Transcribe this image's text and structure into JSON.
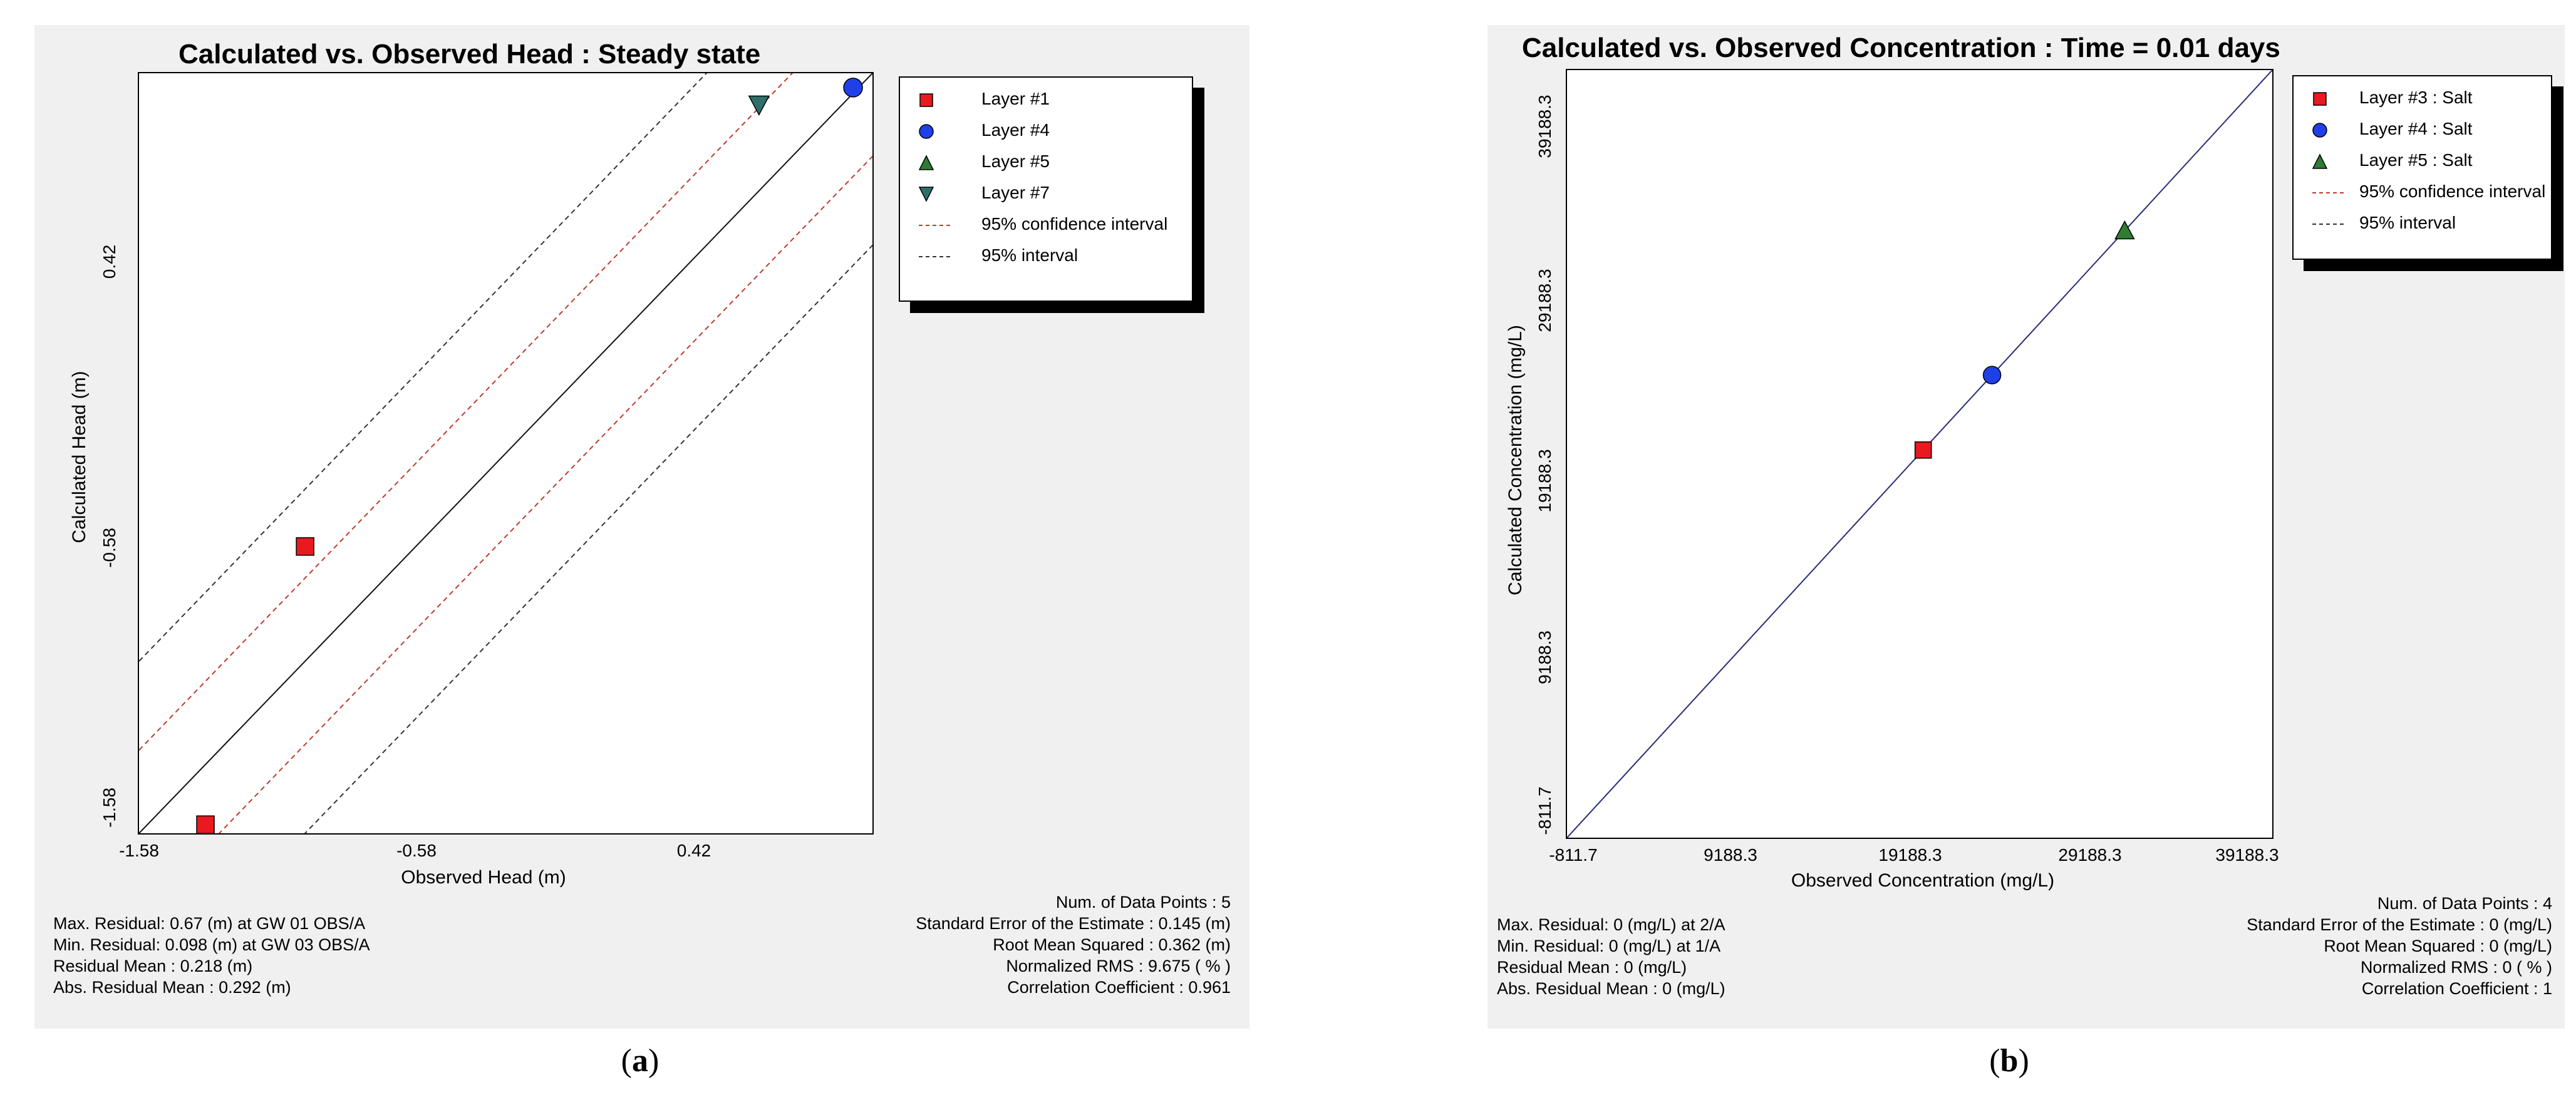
{
  "panels": [
    {
      "caption_letter": "a",
      "chart_data": {
        "type": "scatter",
        "title": "Calculated vs. Observed Head : Steady state",
        "xlabel": "Observed Head (m)",
        "ylabel": "Calculated Head (m)",
        "xlim": [
          -1.58,
          1.07
        ],
        "ylim": [
          -1.58,
          1.07
        ],
        "xticks": [
          "-1.58",
          "-0.58",
          "0.42"
        ],
        "yticks": [
          "-1.58",
          "-0.58",
          "0.42"
        ],
        "series": [
          {
            "name": "Layer #1",
            "marker": "square",
            "color": "#e8191f",
            "points": [
              [
                -0.98,
                -0.58
              ],
              [
                -1.34,
                -1.55
              ]
            ]
          },
          {
            "name": "Layer #4",
            "marker": "circle",
            "color": "#1f3fe8",
            "points": [
              [
                1.0,
                1.02
              ]
            ]
          },
          {
            "name": "Layer #5",
            "marker": "triangle-up",
            "color": "#2e7d32",
            "points": []
          },
          {
            "name": "Layer #7",
            "marker": "triangle-down",
            "color": "#2f6f6b",
            "points": [
              [
                0.66,
                0.96
              ]
            ]
          }
        ],
        "lines": [
          {
            "name": "95% confidence interval",
            "style": "dashed",
            "color": "#c0392b",
            "offset": 0.29
          },
          {
            "name": "95% interval",
            "style": "dashed",
            "color": "#333333",
            "offset": 0.6
          }
        ],
        "legend_position": "top-right"
      },
      "stats_left": [
        "Max. Residual: 0.67 (m) at GW 01 OBS/A",
        "Min. Residual: 0.098 (m) at GW 03 OBS/A",
        "Residual Mean : 0.218 (m)",
        "Abs. Residual Mean : 0.292 (m)"
      ],
      "stats_right": [
        "Num. of Data Points : 5",
        "Standard Error of the Estimate : 0.145 (m)",
        "Root Mean Squared : 0.362 (m)",
        "Normalized RMS :  9.675 ( % )",
        "Correlation Coefficient : 0.961"
      ]
    },
    {
      "caption_letter": "b",
      "chart_data": {
        "type": "scatter",
        "title": "Calculated vs. Observed Concentration : Time = 0.01 days",
        "xlabel": "Observed Concentration (mg/L)",
        "ylabel": "Calculated Concentration (mg/L)",
        "xlim": [
          -811.7,
          41188.3
        ],
        "ylim": [
          -811.7,
          41188.3
        ],
        "xticks": [
          "-811.7",
          "9188.3",
          "19188.3",
          "29188.3",
          "39188.3"
        ],
        "yticks": [
          "-811.7",
          "9188.3",
          "19188.3",
          "29188.3",
          "39188.3"
        ],
        "series": [
          {
            "name": "Layer #3 : Salt",
            "marker": "square",
            "color": "#e8191f",
            "points": [
              [
                20400,
                20400
              ]
            ]
          },
          {
            "name": "Layer #4 : Salt",
            "marker": "circle",
            "color": "#1f3fe8",
            "points": [
              [
                24500,
                24500
              ]
            ]
          },
          {
            "name": "Layer #5 : Salt",
            "marker": "triangle-up",
            "color": "#2e7d32",
            "points": [
              [
                32400,
                32400
              ]
            ]
          }
        ],
        "lines": [
          {
            "name": "95% confidence interval",
            "style": "dashed",
            "color": "#c0392b"
          },
          {
            "name": "95% interval",
            "style": "dashed",
            "color": "#333333"
          }
        ],
        "legend_position": "top-right"
      },
      "stats_left": [
        "Max. Residual: 0 (mg/L) at 2/A",
        "Min. Residual: 0 (mg/L) at 1/A",
        "Residual Mean : 0 (mg/L)",
        "Abs. Residual Mean : 0 (mg/L)"
      ],
      "stats_right": [
        "Num. of Data Points : 4",
        "Standard Error of the Estimate : 0 (mg/L)",
        "Root Mean Squared : 0 (mg/L)",
        "Normalized RMS : 0 ( % )",
        "Correlation Coefficient : 1"
      ]
    }
  ]
}
